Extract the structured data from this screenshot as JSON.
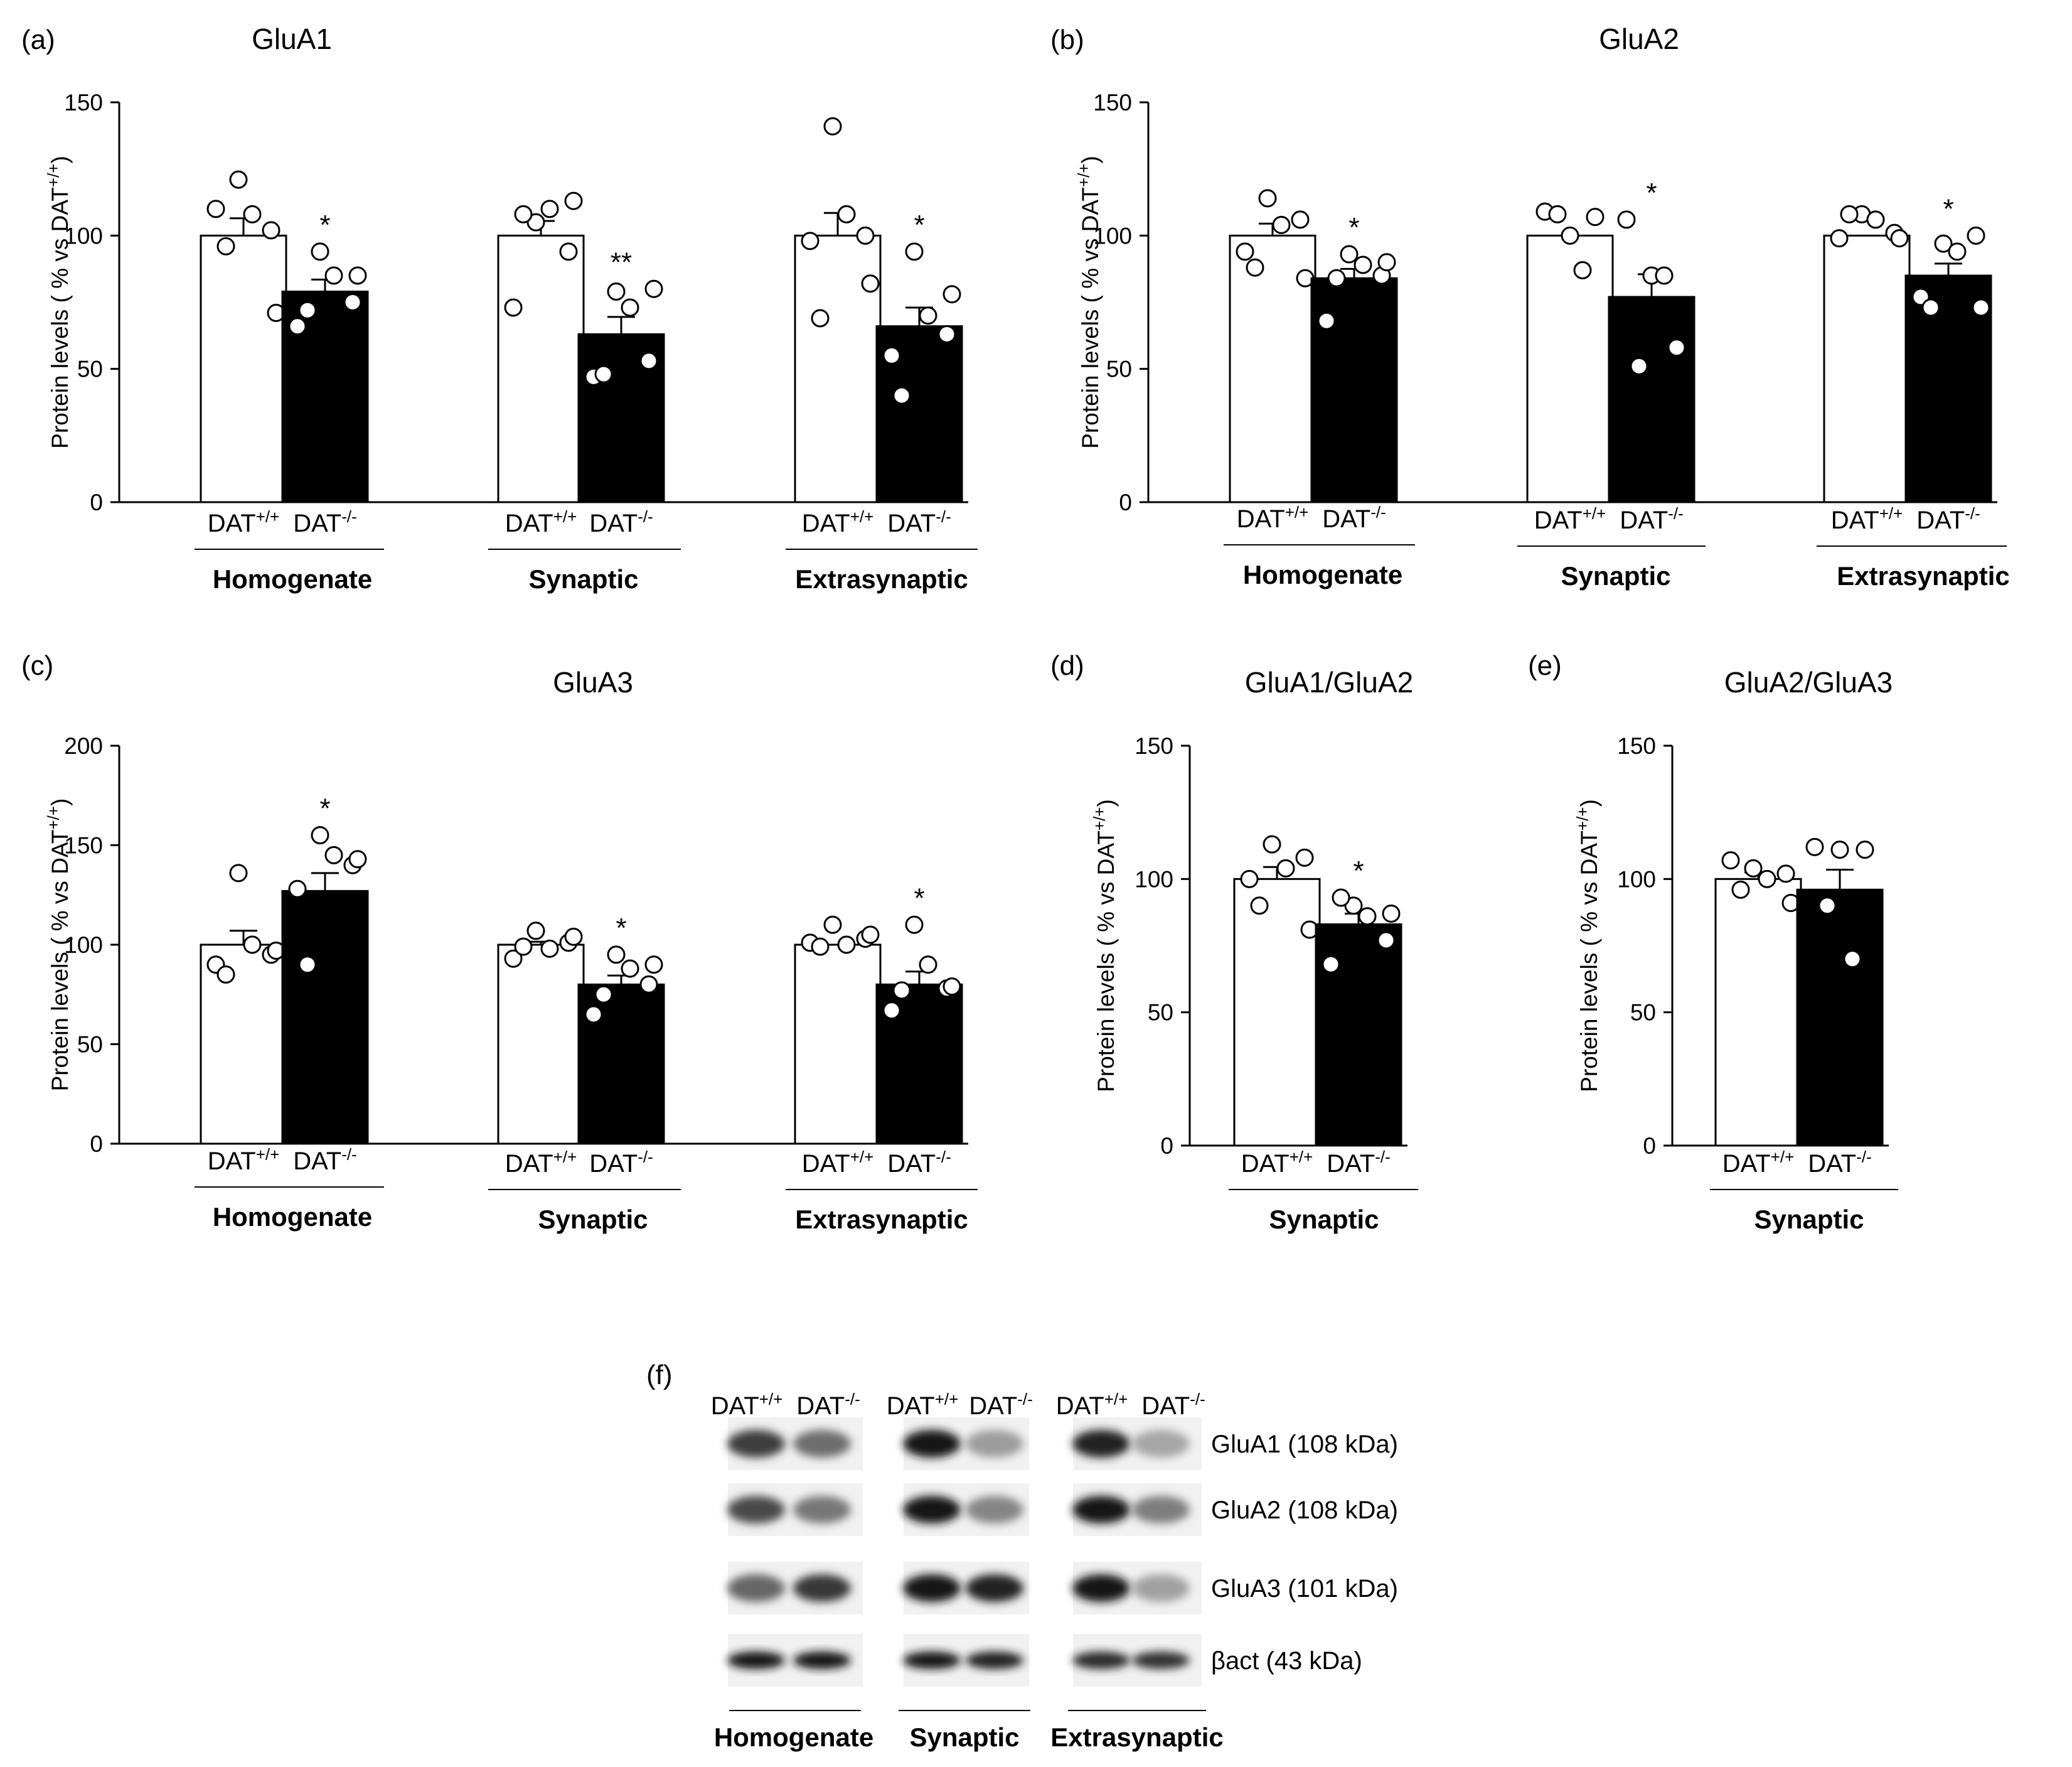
{
  "figure": {
    "y_axis_label": "Protein levels ( % vs DAT",
    "y_axis_label_sup": "+/+",
    "y_axis_label_end": ")",
    "group_base": "DAT",
    "wt_sup": "+/+",
    "ko_sup": "-/-",
    "colors": {
      "wt_fill": "#ffffff",
      "ko_fill": "#000000",
      "axis": "#000000"
    }
  },
  "chart_data": [
    {
      "panel": "(a)",
      "title": "GluA1",
      "type": "bar",
      "ylim": [
        0,
        150
      ],
      "yticks": [
        0,
        50,
        100,
        150
      ],
      "groups": [
        "DAT+/+",
        "DAT-/-"
      ],
      "sections": [
        {
          "label": "Homogenate",
          "bars": [
            {
              "group": "DAT+/+",
              "mean": 100,
              "sem": 6.5,
              "points": [
                121,
                108,
                102,
                110,
                96,
                71
              ]
            },
            {
              "group": "DAT-/-",
              "mean": 79,
              "sem": 4.5,
              "points": [
                94,
                85,
                75,
                66,
                72,
                85
              ]
            }
          ],
          "sig": "*"
        },
        {
          "label": "Synaptic",
          "bars": [
            {
              "group": "DAT+/+",
              "mean": 100,
              "sem": 5.5,
              "points": [
                105,
                110,
                94,
                73,
                108,
                113
              ]
            },
            {
              "group": "DAT-/-",
              "mean": 63,
              "sem": 6.5,
              "points": [
                79,
                73,
                53,
                47,
                48,
                80
              ]
            }
          ],
          "sig": "**"
        },
        {
          "label": "Extrasynaptic",
          "bars": [
            {
              "group": "DAT+/+",
              "mean": 100,
              "sem": 8.5,
              "points": [
                141,
                108,
                100,
                98,
                69,
                82
              ]
            },
            {
              "group": "DAT-/-",
              "mean": 66,
              "sem": 7,
              "points": [
                94,
                70,
                63,
                55,
                40,
                78
              ]
            }
          ],
          "sig": "*"
        }
      ]
    },
    {
      "panel": "(b)",
      "title": "GluA2",
      "type": "bar",
      "ylim": [
        0,
        150
      ],
      "yticks": [
        0,
        50,
        100,
        150
      ],
      "groups": [
        "DAT+/+",
        "DAT-/-"
      ],
      "sections": [
        {
          "label": "Homogenate",
          "bars": [
            {
              "group": "DAT+/+",
              "mean": 100,
              "sem": 4.5,
              "points": [
                114,
                104,
                106,
                94,
                88,
                84
              ]
            },
            {
              "group": "DAT-/-",
              "mean": 84,
              "sem": 3.5,
              "points": [
                93,
                89,
                85,
                68,
                84,
                90
              ]
            }
          ],
          "sig": "*"
        },
        {
          "label": "Synaptic",
          "bars": [
            {
              "group": "DAT+/+",
              "mean": 100,
              "sem": 0,
              "points": [
                109,
                100,
                107,
                108,
                87
              ]
            },
            {
              "group": "DAT-/-",
              "mean": 77,
              "sem": 8.5,
              "points": [
                106,
                85,
                58,
                51,
                85
              ]
            }
          ],
          "sig": "*"
        },
        {
          "label": "Extrasynaptic",
          "bars": [
            {
              "group": "DAT+/+",
              "mean": 100,
              "sem": 0,
              "points": [
                108,
                106,
                101,
                99,
                108,
                99
              ]
            },
            {
              "group": "DAT-/-",
              "mean": 85,
              "sem": 4.5,
              "points": [
                97,
                94,
                100,
                77,
                73,
                73
              ]
            }
          ],
          "sig": "*"
        }
      ]
    },
    {
      "panel": "(c)",
      "title": "GluA3",
      "type": "bar",
      "ylim": [
        0,
        200
      ],
      "yticks": [
        0,
        50,
        100,
        150,
        200
      ],
      "groups": [
        "DAT+/+",
        "DAT-/-"
      ],
      "sections": [
        {
          "label": "Homogenate",
          "bars": [
            {
              "group": "DAT+/+",
              "mean": 100,
              "sem": 7,
              "points": [
                136,
                100,
                95,
                90,
                85,
                97
              ]
            },
            {
              "group": "DAT-/-",
              "mean": 127,
              "sem": 9,
              "points": [
                155,
                145,
                140,
                128,
                90,
                143
              ]
            }
          ],
          "sig": "*"
        },
        {
          "label": "Synaptic",
          "bars": [
            {
              "group": "DAT+/+",
              "mean": 100,
              "sem": 1.5,
              "points": [
                107,
                98,
                101,
                93,
                99,
                104
              ]
            },
            {
              "group": "DAT-/-",
              "mean": 80,
              "sem": 4.5,
              "points": [
                95,
                88,
                80,
                65,
                75,
                90
              ]
            }
          ],
          "sig": "*"
        },
        {
          "label": "Extrasynaptic",
          "bars": [
            {
              "group": "DAT+/+",
              "mean": 100,
              "sem": 0,
              "points": [
                110,
                100,
                103,
                101,
                99,
                105
              ]
            },
            {
              "group": "DAT-/-",
              "mean": 80,
              "sem": 6.5,
              "points": [
                110,
                90,
                78,
                67,
                77,
                79
              ]
            }
          ],
          "sig": "*"
        }
      ]
    },
    {
      "panel": "(d)",
      "title": "GluA1/GluA2",
      "type": "bar",
      "ylim": [
        0,
        150
      ],
      "yticks": [
        0,
        50,
        100,
        150
      ],
      "groups": [
        "DAT+/+",
        "DAT-/-"
      ],
      "sections": [
        {
          "label": "Synaptic",
          "bars": [
            {
              "group": "DAT+/+",
              "mean": 100,
              "sem": 4.5,
              "points": [
                113,
                104,
                108,
                100,
                90,
                81
              ]
            },
            {
              "group": "DAT-/-",
              "mean": 83,
              "sem": 4,
              "points": [
                90,
                86,
                77,
                68,
                93,
                87
              ]
            }
          ],
          "sig": "*"
        }
      ]
    },
    {
      "panel": "(e)",
      "title": "GluA2/GluA3",
      "type": "bar",
      "ylim": [
        0,
        150
      ],
      "yticks": [
        0,
        50,
        100,
        150
      ],
      "groups": [
        "DAT+/+",
        "DAT-/-"
      ],
      "sections": [
        {
          "label": "Synaptic",
          "bars": [
            {
              "group": "DAT+/+",
              "mean": 100,
              "sem": 2.5,
              "points": [
                104,
                100,
                102,
                107,
                96,
                91
              ]
            },
            {
              "group": "DAT-/-",
              "mean": 96,
              "sem": 7.5,
              "points": [
                112,
                111,
                111,
                90,
                70
              ]
            }
          ],
          "sig": ""
        }
      ]
    }
  ],
  "blot": {
    "panel": "(f)",
    "sections": [
      "Homogenate",
      "Synaptic",
      "Extrasynaptic"
    ],
    "bands": [
      {
        "label": "GluA1 (108 kDa)",
        "intensity": [
          [
            0.82,
            0.62
          ],
          [
            1.0,
            0.42
          ],
          [
            0.95,
            0.38
          ]
        ]
      },
      {
        "label": "GluA2 (108 kDa)",
        "intensity": [
          [
            0.78,
            0.58
          ],
          [
            1.0,
            0.52
          ],
          [
            1.0,
            0.55
          ]
        ]
      },
      {
        "label": "GluA3 (101 kDa)",
        "intensity": [
          [
            0.65,
            0.85
          ],
          [
            1.0,
            0.95
          ],
          [
            1.0,
            0.4
          ]
        ]
      },
      {
        "label": "βact (43 kDa)",
        "intensity": [
          [
            1.0,
            1.0
          ],
          [
            1.0,
            0.95
          ],
          [
            0.9,
            0.88
          ]
        ]
      }
    ]
  }
}
